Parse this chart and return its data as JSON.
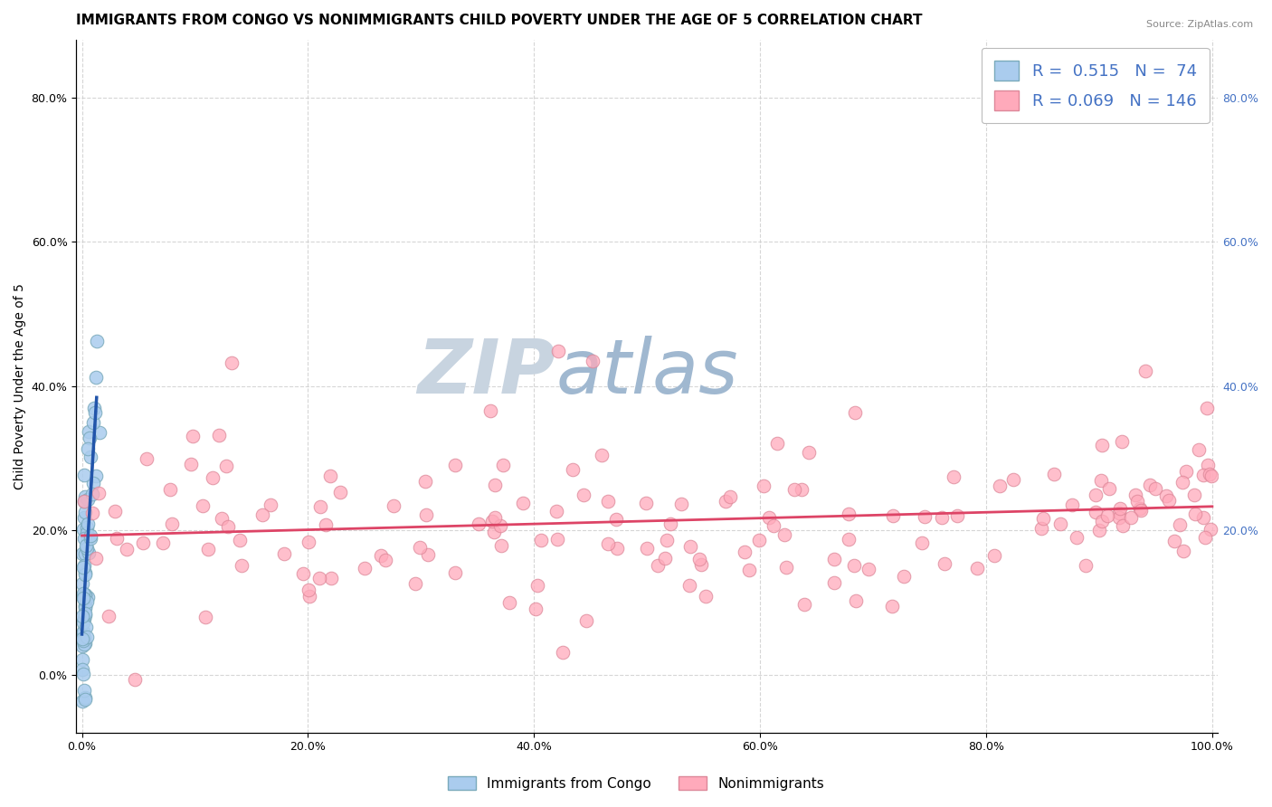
{
  "title": "IMMIGRANTS FROM CONGO VS NONIMMIGRANTS CHILD POVERTY UNDER THE AGE OF 5 CORRELATION CHART",
  "source": "Source: ZipAtlas.com",
  "ylabel": "Child Poverty Under the Age of 5",
  "xlabel": "",
  "xlim": [
    -0.005,
    1.005
  ],
  "ylim": [
    -0.08,
    0.88
  ],
  "xticks": [
    0,
    0.2,
    0.4,
    0.6,
    0.8,
    1.0
  ],
  "xticklabels": [
    "0.0%",
    "20.0%",
    "40.0%",
    "60.0%",
    "80.0%",
    "100.0%"
  ],
  "yticks": [
    0.0,
    0.2,
    0.4,
    0.6,
    0.8
  ],
  "yticklabels": [
    "0.0%",
    "20.0%",
    "40.0%",
    "60.0%",
    "80.0%"
  ],
  "right_ytick_vals": [
    0.2,
    0.4,
    0.6,
    0.8
  ],
  "right_yticklabels": [
    "20.0%",
    "40.0%",
    "60.0%",
    "80.0%"
  ],
  "legend_label1": "Immigrants from Congo",
  "legend_label2": "Nonimmigrants",
  "R1": 0.515,
  "N1": 74,
  "R2": 0.069,
  "N2": 146,
  "blue_marker_color": "#aaccee",
  "blue_edge_color": "#7aaabb",
  "blue_line_color": "#2255aa",
  "pink_marker_color": "#ffaabb",
  "pink_edge_color": "#dd8899",
  "pink_line_color": "#dd4466",
  "watermark_ZIP_color": "#c8d4e0",
  "watermark_atlas_color": "#a0b8d0",
  "title_fontsize": 11,
  "axis_label_fontsize": 10,
  "tick_fontsize": 9,
  "right_tick_color": "#4472c4",
  "background_color": "#ffffff",
  "grid_color": "#cccccc"
}
